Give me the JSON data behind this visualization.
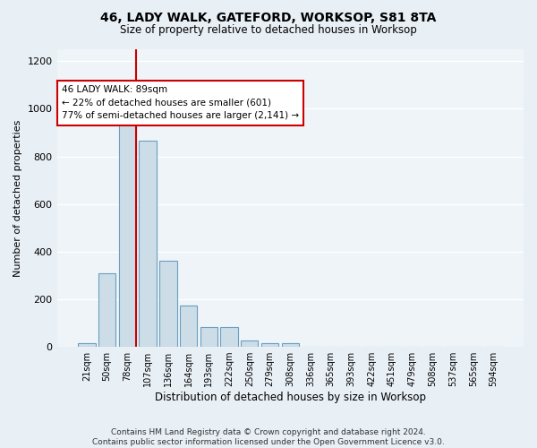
{
  "title": "46, LADY WALK, GATEFORD, WORKSOP, S81 8TA",
  "subtitle": "Size of property relative to detached houses in Worksop",
  "xlabel": "Distribution of detached houses by size in Worksop",
  "ylabel": "Number of detached properties",
  "bar_labels": [
    "21sqm",
    "50sqm",
    "78sqm",
    "107sqm",
    "136sqm",
    "164sqm",
    "193sqm",
    "222sqm",
    "250sqm",
    "279sqm",
    "308sqm",
    "336sqm",
    "365sqm",
    "393sqm",
    "422sqm",
    "451sqm",
    "479sqm",
    "508sqm",
    "537sqm",
    "565sqm",
    "594sqm"
  ],
  "bar_values": [
    14,
    310,
    960,
    865,
    360,
    175,
    82,
    82,
    26,
    14,
    14,
    0,
    0,
    0,
    0,
    0,
    0,
    0,
    0,
    0,
    0
  ],
  "bar_color": "#ccdde8",
  "bar_edge_color": "#6a9fc0",
  "marker_bar_index": 2,
  "marker_color": "#cc0000",
  "annotation_line1": "46 LADY WALK: 89sqm",
  "annotation_line2": "← 22% of detached houses are smaller (601)",
  "annotation_line3": "77% of semi-detached houses are larger (2,141) →",
  "annotation_box_facecolor": "#ffffff",
  "annotation_box_edgecolor": "#cc0000",
  "ylim": [
    0,
    1250
  ],
  "yticks": [
    0,
    200,
    400,
    600,
    800,
    1000,
    1200
  ],
  "footer_text": "Contains HM Land Registry data © Crown copyright and database right 2024.\nContains public sector information licensed under the Open Government Licence v3.0.",
  "bg_color": "#e8eff5",
  "plot_bg_color": "#eef4f8",
  "grid_color": "#ffffff",
  "title_fontsize": 10,
  "subtitle_fontsize": 8.5,
  "ylabel_fontsize": 8,
  "xlabel_fontsize": 8.5,
  "tick_fontsize": 7,
  "footer_fontsize": 6.5
}
